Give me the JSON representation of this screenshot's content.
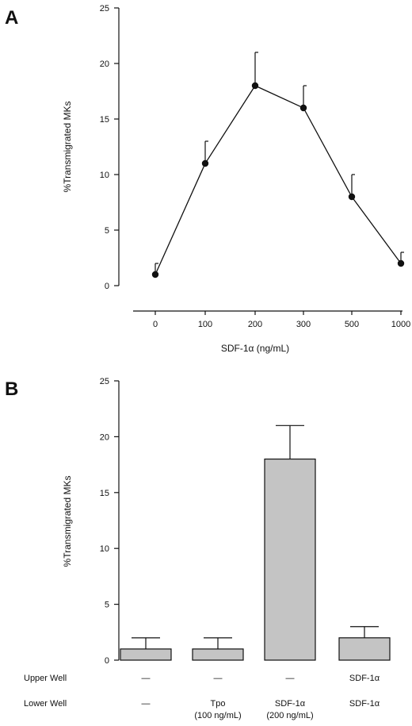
{
  "chart_data": [
    {
      "type": "line",
      "panel": "A",
      "x": [
        "0",
        "100",
        "200",
        "300",
        "500",
        "1000"
      ],
      "values": [
        1,
        11,
        18,
        16,
        8,
        2
      ],
      "error": [
        1,
        2,
        3,
        2,
        2,
        1
      ],
      "xlabel": "SDF-1α (ng/mL)",
      "ylabel": "%Transmigrated MKs",
      "ylim": [
        0,
        25
      ],
      "yticks": [
        "0",
        "5",
        "10",
        "15",
        "20",
        "25"
      ],
      "grid": false
    },
    {
      "type": "bar",
      "panel": "B",
      "categories": [
        "—|—",
        "—|Tpo (100 ng/mL)",
        "—|SDF-1α (200 ng/mL)",
        "SDF-1α|SDF-1α"
      ],
      "values": [
        1,
        1,
        18,
        2
      ],
      "error": [
        1,
        1,
        3,
        1
      ],
      "ylabel": "%Transmigrated MKs",
      "ylim": [
        0,
        25
      ],
      "yticks": [
        "0",
        "5",
        "10",
        "15",
        "20",
        "25"
      ],
      "row_labels": [
        "Upper Well",
        "Lower Well"
      ],
      "upper_well": [
        "—",
        "—",
        "—",
        "SDF-1α"
      ],
      "lower_well": [
        {
          "line1": "—",
          "line2": ""
        },
        {
          "line1": "Tpo",
          "line2": "(100 ng/mL)"
        },
        {
          "line1": "SDF-1α",
          "line2": "(200 ng/mL)"
        },
        {
          "line1": "SDF-1α",
          "line2": ""
        }
      ],
      "bar_color": "#c4c4c4",
      "grid": false
    }
  ]
}
